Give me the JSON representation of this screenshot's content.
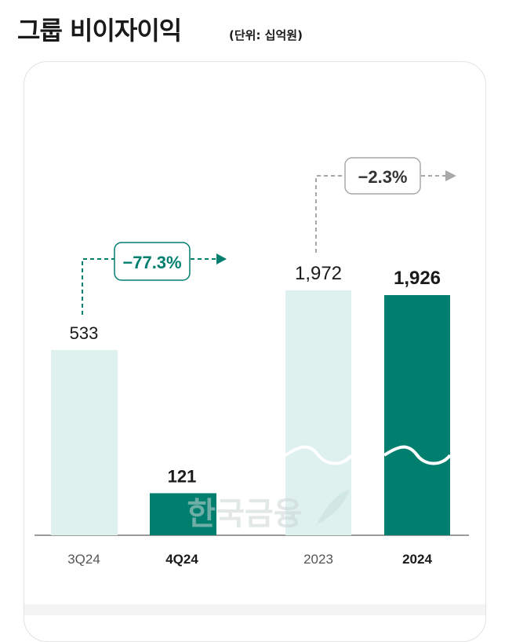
{
  "header": {
    "title": "그룹 비이자이익",
    "unit": "(단위: 십억원)"
  },
  "chart_data": [
    {
      "type": "bar",
      "categories": [
        "3Q24",
        "4Q24"
      ],
      "values": [
        533,
        121
      ],
      "value_labels": [
        "533",
        "121"
      ],
      "ylim": [
        0,
        1972
      ],
      "change_label": "−77.3%",
      "colors": {
        "previous": "#dff1ee",
        "current": "#007f6f"
      }
    },
    {
      "type": "bar",
      "categories": [
        "2023",
        "2024"
      ],
      "values": [
        1972,
        1926
      ],
      "value_labels": [
        "1,972",
        "1,926"
      ],
      "ylim": [
        0,
        1972
      ],
      "axis_break": true,
      "change_label": "−2.3%",
      "colors": {
        "previous": "#dff1ee",
        "current": "#007f6f"
      }
    }
  ],
  "watermark": "한국금융"
}
